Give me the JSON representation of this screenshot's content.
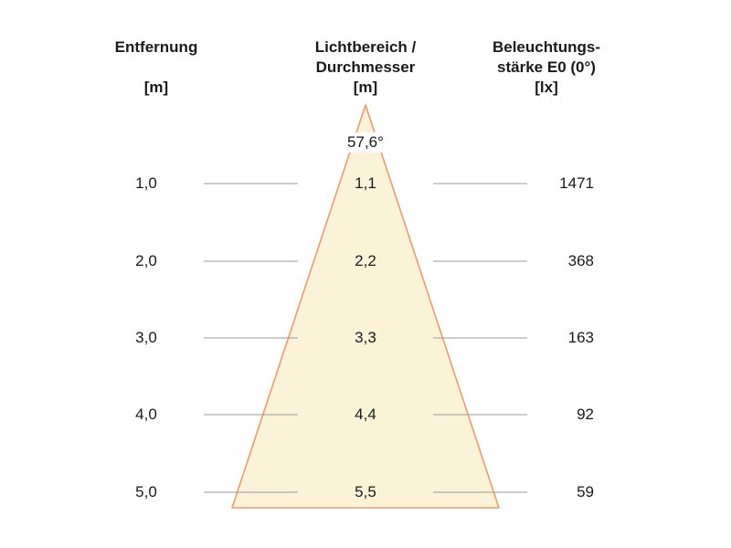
{
  "headers": {
    "distance": {
      "line1": "Entfernung",
      "line2": "",
      "unit": "[m]"
    },
    "diameter": {
      "line1": "Lichtbereich /",
      "line2": "Durchmesser",
      "unit": "[m]"
    },
    "illuminance": {
      "line1": "Beleuchtungs-",
      "line2": "stärke E0 (0°)",
      "unit": "[lx]"
    }
  },
  "beam_angle": "57,6°",
  "rows": [
    {
      "distance": "1,0",
      "diameter": "1,1",
      "illuminance": "1471"
    },
    {
      "distance": "2,0",
      "diameter": "2,2",
      "illuminance": "368"
    },
    {
      "distance": "3,0",
      "diameter": "3,3",
      "illuminance": "163"
    },
    {
      "distance": "4,0",
      "diameter": "4,4",
      "illuminance": "92"
    },
    {
      "distance": "5,0",
      "diameter": "5,5",
      "illuminance": "59"
    }
  ],
  "colors": {
    "cone_fill": "#fbf3d8",
    "cone_edge": "#ef9a6a",
    "guide_line": "#9a9a9a",
    "text": "#1a1a1a"
  }
}
